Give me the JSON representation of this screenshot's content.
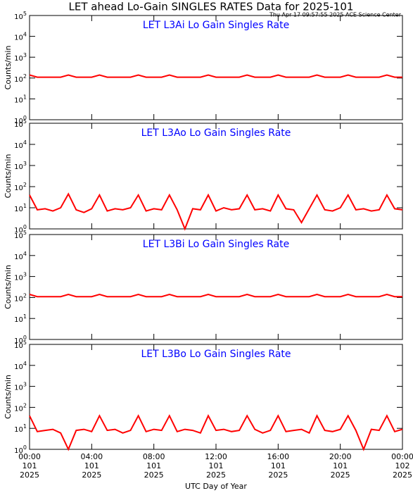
{
  "header": {
    "title": "LET ahead Lo-Gain SINGLES RATES Data for 2025-101",
    "subtitle": "Thu Apr 17 09:57:55 2025 ACE Science Center"
  },
  "chart_data": [
    {
      "type": "line",
      "title": "LET L3Ai Lo Gain Singles Rate",
      "ylabel": "Counts/min",
      "log": true,
      "color": "#ff0000",
      "x": [
        0,
        0.5,
        1,
        1.5,
        2,
        2.5,
        3,
        3.5,
        4,
        4.5,
        5,
        5.5,
        6,
        6.5,
        7,
        7.5,
        8,
        8.5,
        9,
        9.5,
        10,
        10.5,
        11,
        11.5,
        12,
        12.5,
        13,
        13.5,
        14,
        14.5,
        15,
        15.5,
        16,
        16.5,
        17,
        17.5,
        18,
        18.5,
        19,
        19.5,
        20,
        20.5,
        21,
        21.5,
        22,
        22.5,
        23,
        23.5,
        24
      ],
      "values": [
        140,
        110,
        110,
        110,
        110,
        140,
        110,
        110,
        110,
        140,
        110,
        110,
        110,
        110,
        140,
        110,
        110,
        110,
        140,
        110,
        110,
        110,
        110,
        140,
        110,
        110,
        110,
        110,
        140,
        110,
        110,
        110,
        140,
        110,
        110,
        110,
        110,
        140,
        110,
        110,
        110,
        140,
        110,
        110,
        110,
        110,
        140,
        110,
        110
      ],
      "xlim": [
        0,
        24
      ],
      "ylim": [
        1,
        100000
      ],
      "yticks": [
        {
          "value": 1,
          "label": "10",
          "exponent": "0"
        },
        {
          "value": 10,
          "label": "10",
          "exponent": "1"
        },
        {
          "value": 100,
          "label": "10",
          "exponent": "2"
        },
        {
          "value": 1000,
          "label": "10",
          "exponent": "3"
        },
        {
          "value": 10000,
          "label": "10",
          "exponent": "4"
        },
        {
          "value": 100000,
          "label": "10",
          "exponent": "5"
        }
      ]
    },
    {
      "type": "line",
      "title": "LET L3Ao Lo Gain Singles Rate",
      "ylabel": "Counts/min",
      "log": true,
      "color": "#ff0000",
      "x": [
        0,
        0.5,
        1,
        1.5,
        2,
        2.5,
        3,
        3.5,
        4,
        4.5,
        5,
        5.5,
        6,
        6.5,
        7,
        7.5,
        8,
        8.5,
        9,
        9.5,
        10,
        10.5,
        11,
        11.5,
        12,
        12.5,
        13,
        13.5,
        14,
        14.5,
        15,
        15.5,
        16,
        16.5,
        17,
        17.5,
        18,
        18.5,
        19,
        19.5,
        20,
        20.5,
        21,
        21.5,
        22,
        22.5,
        23,
        23.5,
        24
      ],
      "values": [
        40,
        8,
        9,
        7,
        10,
        45,
        8,
        6,
        9,
        40,
        7,
        9,
        8,
        10,
        40,
        7,
        9,
        8,
        40,
        8,
        1,
        9,
        8,
        40,
        7,
        10,
        8,
        9,
        40,
        8,
        9,
        7,
        40,
        9,
        8,
        2,
        9,
        40,
        8,
        7,
        10,
        40,
        8,
        9,
        7,
        8,
        40,
        9,
        8
      ],
      "xlim": [
        0,
        24
      ],
      "ylim": [
        1,
        100000
      ],
      "yticks": [
        {
          "value": 1,
          "label": "10",
          "exponent": "0"
        },
        {
          "value": 10,
          "label": "10",
          "exponent": "1"
        },
        {
          "value": 100,
          "label": "10",
          "exponent": "2"
        },
        {
          "value": 1000,
          "label": "10",
          "exponent": "3"
        },
        {
          "value": 10000,
          "label": "10",
          "exponent": "4"
        },
        {
          "value": 100000,
          "label": "10",
          "exponent": "5"
        }
      ]
    },
    {
      "type": "line",
      "title": "LET L3Bi Lo Gain Singles Rate",
      "ylabel": "Counts/min",
      "log": true,
      "color": "#ff0000",
      "x": [
        0,
        0.5,
        1,
        1.5,
        2,
        2.5,
        3,
        3.5,
        4,
        4.5,
        5,
        5.5,
        6,
        6.5,
        7,
        7.5,
        8,
        8.5,
        9,
        9.5,
        10,
        10.5,
        11,
        11.5,
        12,
        12.5,
        13,
        13.5,
        14,
        14.5,
        15,
        15.5,
        16,
        16.5,
        17,
        17.5,
        18,
        18.5,
        19,
        19.5,
        20,
        20.5,
        21,
        21.5,
        22,
        22.5,
        23,
        23.5,
        24
      ],
      "values": [
        140,
        110,
        110,
        110,
        110,
        140,
        110,
        110,
        110,
        140,
        110,
        110,
        110,
        110,
        140,
        110,
        110,
        110,
        140,
        110,
        110,
        110,
        110,
        140,
        110,
        110,
        110,
        110,
        140,
        110,
        110,
        110,
        140,
        110,
        110,
        110,
        110,
        140,
        110,
        110,
        110,
        140,
        110,
        110,
        110,
        110,
        140,
        110,
        110
      ],
      "xlim": [
        0,
        24
      ],
      "ylim": [
        1,
        100000
      ],
      "yticks": [
        {
          "value": 1,
          "label": "10",
          "exponent": "0"
        },
        {
          "value": 10,
          "label": "10",
          "exponent": "1"
        },
        {
          "value": 100,
          "label": "10",
          "exponent": "2"
        },
        {
          "value": 1000,
          "label": "10",
          "exponent": "3"
        },
        {
          "value": 10000,
          "label": "10",
          "exponent": "4"
        },
        {
          "value": 100000,
          "label": "10",
          "exponent": "5"
        }
      ]
    },
    {
      "type": "line",
      "title": "LET L3Bo Lo Gain Singles Rate",
      "ylabel": "Counts/min",
      "log": true,
      "color": "#ff0000",
      "x": [
        0,
        0.5,
        1,
        1.5,
        2,
        2.5,
        3,
        3.5,
        4,
        4.5,
        5,
        5.5,
        6,
        6.5,
        7,
        7.5,
        8,
        8.5,
        9,
        9.5,
        10,
        10.5,
        11,
        11.5,
        12,
        12.5,
        13,
        13.5,
        14,
        14.5,
        15,
        15.5,
        16,
        16.5,
        17,
        17.5,
        18,
        18.5,
        19,
        19.5,
        20,
        20.5,
        21,
        21.5,
        22,
        22.5,
        23,
        23.5,
        24
      ],
      "values": [
        40,
        7,
        8,
        9,
        6,
        1,
        8,
        9,
        7,
        40,
        8,
        9,
        6,
        8,
        40,
        7,
        9,
        8,
        40,
        7,
        9,
        8,
        6,
        40,
        8,
        9,
        7,
        8,
        40,
        9,
        6,
        8,
        40,
        7,
        8,
        9,
        6,
        40,
        8,
        7,
        9,
        40,
        8,
        1,
        9,
        8,
        40,
        7,
        9
      ],
      "xlim": [
        0,
        24
      ],
      "ylim": [
        1,
        100000
      ],
      "yticks": [
        {
          "value": 1,
          "label": "10",
          "exponent": "0"
        },
        {
          "value": 10,
          "label": "10",
          "exponent": "1"
        },
        {
          "value": 100,
          "label": "10",
          "exponent": "2"
        },
        {
          "value": 1000,
          "label": "10",
          "exponent": "3"
        },
        {
          "value": 10000,
          "label": "10",
          "exponent": "4"
        },
        {
          "value": 100000,
          "label": "10",
          "exponent": "5"
        }
      ],
      "xlabel": "UTC Day of Year",
      "xticks": [
        {
          "value": 0,
          "label": "00:00"
        },
        {
          "value": 4,
          "label": "04:00"
        },
        {
          "value": 8,
          "label": "08:00"
        },
        {
          "value": 12,
          "label": "12:00"
        },
        {
          "value": 16,
          "label": "16:00"
        },
        {
          "value": 20,
          "label": "20:00"
        },
        {
          "value": 24,
          "label": "00:00"
        }
      ],
      "xtick_days": [
        "101",
        "101",
        "101",
        "101",
        "101",
        "101",
        "102"
      ],
      "xtick_years": [
        "2025",
        "2025",
        "2025",
        "2025",
        "2025",
        "2025",
        "2025"
      ]
    }
  ]
}
